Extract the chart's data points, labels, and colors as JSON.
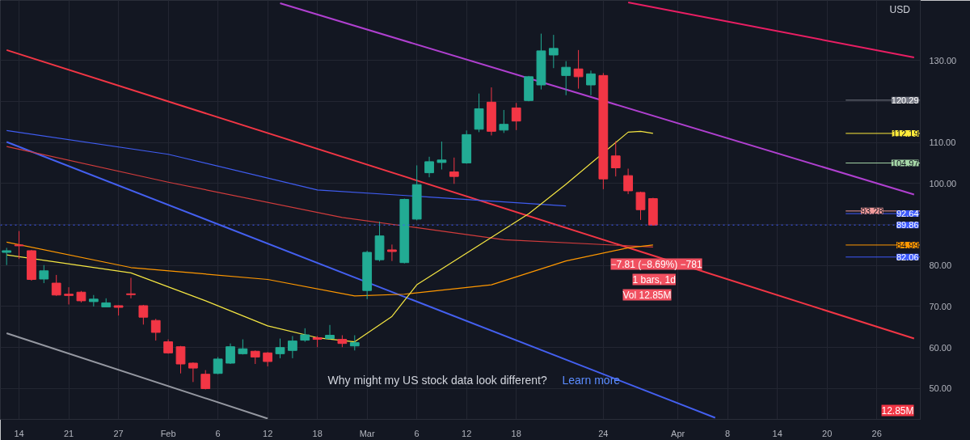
{
  "chart_data": {
    "type": "candlestick",
    "categories": [
      null,
      "14",
      null,
      null,
      null,
      "21",
      null,
      null,
      null,
      "27",
      null,
      null,
      null,
      "Feb",
      null,
      null,
      null,
      "6",
      null,
      null,
      null,
      "12",
      null,
      null,
      null,
      "18",
      null,
      null,
      null,
      "Mar",
      null,
      null,
      null,
      "6",
      null,
      null,
      null,
      "12",
      null,
      null,
      null,
      "18",
      null,
      null,
      null,
      null,
      null,
      null,
      "24",
      null,
      null,
      null,
      null,
      null,
      "Apr",
      null,
      null,
      null,
      "8",
      null,
      null,
      null,
      "14",
      null,
      null,
      null,
      "20",
      null,
      null,
      null,
      "26",
      null,
      null,
      null
    ],
    "ohlc": [
      [
        83.2,
        84.3,
        80.1,
        83.6
      ],
      [
        85.0,
        88.4,
        81.6,
        84.8
      ],
      [
        83.6,
        83.8,
        76.3,
        76.6
      ],
      [
        76.7,
        80.1,
        75.7,
        78.7
      ],
      [
        75.7,
        77.7,
        72.6,
        72.8
      ],
      [
        73.0,
        74.7,
        70.5,
        72.7
      ],
      [
        73.5,
        73.8,
        71.0,
        71.4
      ],
      [
        71.2,
        72.8,
        70.0,
        71.8
      ],
      [
        69.9,
        72.0,
        69.8,
        70.9
      ],
      [
        70.2,
        70.3,
        67.8,
        69.8
      ],
      [
        73.1,
        77.0,
        72.0,
        72.9
      ],
      [
        70.2,
        70.4,
        65.6,
        67.4
      ],
      [
        66.6,
        67.0,
        61.7,
        63.7
      ],
      [
        61.4,
        62.0,
        58.5,
        58.7
      ],
      [
        60.2,
        60.4,
        53.7,
        56.0
      ],
      [
        56.2,
        56.4,
        51.6,
        55.0
      ],
      [
        53.5,
        54.5,
        49.8,
        50.0
      ],
      [
        53.7,
        57.7,
        53.5,
        57.2
      ],
      [
        56.2,
        61.0,
        56.0,
        60.2
      ],
      [
        58.5,
        62.0,
        58.3,
        59.7
      ],
      [
        59.1,
        59.3,
        56.0,
        57.7
      ],
      [
        58.7,
        58.9,
        55.4,
        56.6
      ],
      [
        58.5,
        62.2,
        57.4,
        60.0
      ],
      [
        59.3,
        62.8,
        57.4,
        61.6
      ],
      [
        61.8,
        64.7,
        61.4,
        63.1
      ],
      [
        62.4,
        62.8,
        60.1,
        62.0
      ],
      [
        62.2,
        65.5,
        62.0,
        63.0
      ],
      [
        62.0,
        63.0,
        60.1,
        61.0
      ],
      [
        60.4,
        63.0,
        59.3,
        61.2
      ],
      [
        73.9,
        83.6,
        71.8,
        83.2
      ],
      [
        81.4,
        90.7,
        81.0,
        87.2
      ],
      [
        83.8,
        85.1,
        81.1,
        83.4
      ],
      [
        80.7,
        96.3,
        80.5,
        96.1
      ],
      [
        91.3,
        104.4,
        91.0,
        99.7
      ],
      [
        102.6,
        106.5,
        101.5,
        105.3
      ],
      [
        105.1,
        110.2,
        103.4,
        105.7
      ],
      [
        102.8,
        106.3,
        99.9,
        101.7
      ],
      [
        105.0,
        112.9,
        104.8,
        111.9
      ],
      [
        113.2,
        121.9,
        112.5,
        118.2
      ],
      [
        119.8,
        123.4,
        111.7,
        112.7
      ],
      [
        113.0,
        117.9,
        112.3,
        114.4
      ],
      [
        118.4,
        119.6,
        113.0,
        115.2
      ],
      [
        120.2,
        126.2,
        120.0,
        126.0
      ],
      [
        124.0,
        136.5,
        122.9,
        132.3
      ],
      [
        131.3,
        136.2,
        128.1,
        132.9
      ],
      [
        126.3,
        129.8,
        121.5,
        128.3
      ],
      [
        127.9,
        132.5,
        123.1,
        126.0
      ],
      [
        124.0,
        127.5,
        121.5,
        126.7
      ],
      [
        126.3,
        126.9,
        98.6,
        101.1
      ],
      [
        106.7,
        110.3,
        101.7,
        103.8
      ],
      [
        101.9,
        103.6,
        97.4,
        98.2
      ],
      [
        97.8,
        98.0,
        91.1,
        93.6
      ],
      [
        96.3,
        96.5,
        89.8,
        89.86
      ],
      null,
      null,
      null,
      null,
      null,
      null,
      null,
      null,
      null,
      null,
      null,
      null,
      null,
      null,
      null,
      null,
      null,
      null,
      null,
      null,
      null
    ],
    "colors": [
      "#22ab94",
      "#f23645",
      "#f23645",
      "#22ab94",
      "#f23645",
      "#f23645",
      "#f23645",
      "#22ab94",
      "#22ab94",
      "#f23645",
      "#f23645",
      "#f23645",
      "#f23645",
      "#f23645",
      "#f23645",
      "#f23645",
      "#f23645",
      "#22ab94",
      "#22ab94",
      "#22ab94",
      "#f23645",
      "#f23645",
      "#22ab94",
      "#22ab94",
      "#22ab94",
      "#f23645",
      "#22ab94",
      "#f23645",
      "#22ab94",
      "#22ab94",
      "#22ab94",
      "#f23645",
      "#22ab94",
      "#22ab94",
      "#22ab94",
      "#22ab94",
      "#f23645",
      "#22ab94",
      "#22ab94",
      "#f23645",
      "#22ab94",
      "#f23645",
      "#22ab94",
      "#22ab94",
      "#22ab94",
      "#22ab94",
      "#f23645",
      "#22ab94",
      "#f23645",
      "#f23645",
      "#f23645",
      "#f23645",
      "#f23645",
      null,
      null,
      null,
      null,
      null,
      null,
      null,
      null,
      null,
      null,
      null,
      null,
      null,
      null,
      null,
      null,
      null,
      null,
      null,
      null,
      null
    ],
    "series": [
      {
        "type": "line",
        "color": "#f23645",
        "values": [
          132.5,
          null,
          null,
          null,
          null,
          null,
          null,
          null,
          null,
          null,
          null,
          null,
          null,
          null,
          null,
          null,
          null,
          null,
          null,
          null,
          null,
          null,
          null,
          null,
          null,
          null,
          null,
          null,
          null,
          null,
          null,
          null,
          null,
          null,
          null,
          null,
          null,
          null,
          null,
          null,
          null,
          null,
          null,
          null,
          null,
          null,
          null,
          null,
          null,
          null,
          null,
          null,
          null,
          null,
          null,
          null,
          null,
          null,
          null,
          null,
          null,
          null,
          null,
          null,
          null,
          null,
          null,
          null,
          null,
          null,
          null,
          null,
          null,
          62.2
        ]
      },
      {
        "type": "line",
        "color": "#b040d0",
        "values": [
          null,
          null,
          null,
          null,
          null,
          null,
          null,
          null,
          null,
          null,
          null,
          null,
          null,
          null,
          null,
          null,
          null,
          null,
          null,
          null,
          null,
          null,
          143.9,
          null,
          null,
          null,
          null,
          null,
          null,
          null,
          null,
          null,
          null,
          null,
          null,
          null,
          null,
          null,
          null,
          null,
          null,
          null,
          null,
          null,
          null,
          null,
          null,
          null,
          null,
          null,
          null,
          null,
          null,
          null,
          null,
          null,
          null,
          null,
          null,
          null,
          null,
          null,
          null,
          null,
          null,
          null,
          null,
          null,
          null,
          null,
          null,
          null,
          null,
          97.3
        ]
      },
      {
        "type": "line",
        "color": "#e91e63",
        "values": [
          null,
          null,
          null,
          null,
          null,
          null,
          null,
          null,
          null,
          null,
          null,
          null,
          null,
          null,
          null,
          null,
          null,
          null,
          null,
          null,
          null,
          null,
          null,
          null,
          null,
          null,
          null,
          null,
          null,
          null,
          null,
          null,
          null,
          null,
          null,
          null,
          null,
          null,
          null,
          null,
          null,
          null,
          null,
          null,
          null,
          null,
          null,
          null,
          null,
          null,
          144.1,
          null,
          null,
          null,
          null,
          null,
          null,
          null,
          null,
          null,
          null,
          null,
          null,
          null,
          null,
          null,
          null,
          null,
          null,
          null,
          null,
          null,
          null,
          130.7
        ]
      },
      {
        "type": "line",
        "color": "#4460f0",
        "values": [
          110.1,
          null,
          null,
          null,
          null,
          null,
          null,
          null,
          null,
          null,
          null,
          null,
          null,
          null,
          null,
          null,
          null,
          null,
          null,
          null,
          null,
          null,
          null,
          null,
          null,
          null,
          null,
          null,
          null,
          null,
          null,
          null,
          null,
          null,
          null,
          null,
          null,
          null,
          null,
          null,
          null,
          null,
          null,
          null,
          null,
          null,
          null,
          null,
          null,
          null,
          null,
          null,
          null,
          null,
          null,
          null,
          null,
          42.9,
          null,
          null,
          null,
          null,
          null,
          null,
          null,
          null,
          null,
          null,
          null,
          null,
          null,
          null,
          null,
          null
        ]
      },
      {
        "type": "line",
        "color": "#9598a1",
        "values": [
          63.5,
          null,
          null,
          null,
          null,
          null,
          null,
          null,
          null,
          null,
          null,
          null,
          null,
          null,
          null,
          null,
          null,
          null,
          null,
          null,
          null,
          42.7,
          null,
          null,
          null,
          null,
          null,
          null,
          null,
          null,
          null,
          null,
          null,
          null,
          null,
          null,
          null,
          null,
          null,
          null,
          null,
          null,
          null,
          null,
          null,
          null,
          null,
          null,
          null,
          null,
          null,
          null,
          null,
          null,
          null,
          null,
          null,
          null,
          null,
          null,
          null,
          null,
          null,
          null,
          null,
          null,
          null,
          null,
          null,
          null,
          null,
          null,
          null,
          null
        ]
      },
      {
        "type": "line",
        "color": "#3f5cf0",
        "values": [
          112.9,
          null,
          null,
          null,
          null,
          null,
          null,
          null,
          null,
          null,
          null,
          null,
          null,
          107.1,
          null,
          null,
          null,
          null,
          null,
          null,
          null,
          null,
          null,
          null,
          null,
          98.4,
          null,
          null,
          null,
          null,
          null,
          null,
          null,
          null,
          null,
          96.5,
          null,
          null,
          null,
          null,
          null,
          null,
          null,
          null,
          null,
          94.5,
          null,
          null,
          null,
          null,
          null,
          null,
          null,
          null,
          null,
          null,
          null,
          null,
          null,
          null,
          null,
          null,
          null,
          null,
          null,
          null,
          null,
          null,
          null,
          null,
          null,
          null,
          null,
          null
        ]
      },
      {
        "type": "line",
        "color": "#d23c3c",
        "values": [
          109.0,
          null,
          null,
          null,
          null,
          null,
          null,
          null,
          null,
          null,
          null,
          null,
          null,
          100.3,
          null,
          null,
          null,
          null,
          null,
          null,
          null,
          null,
          null,
          null,
          null,
          null,
          null,
          91.7,
          null,
          null,
          null,
          null,
          null,
          null,
          null,
          null,
          null,
          null,
          null,
          null,
          86.3,
          null,
          null,
          null,
          null,
          null,
          null,
          null,
          null,
          null,
          null,
          null,
          84.5,
          null,
          null,
          null,
          null,
          null,
          null,
          null,
          null,
          null,
          null,
          null,
          null,
          null,
          null,
          null,
          null,
          null,
          null,
          null,
          null,
          null
        ]
      },
      {
        "type": "line",
        "color": "#ff9800",
        "values": [
          85.7,
          null,
          null,
          null,
          null,
          null,
          null,
          null,
          null,
          null,
          79.5,
          null,
          null,
          null,
          null,
          null,
          null,
          null,
          null,
          null,
          null,
          76.6,
          null,
          null,
          null,
          null,
          null,
          null,
          72.6,
          null,
          null,
          null,
          73.0,
          null,
          null,
          null,
          null,
          null,
          null,
          75.3,
          null,
          null,
          null,
          null,
          null,
          81.1,
          null,
          null,
          null,
          null,
          84.3,
          null,
          85.0,
          null,
          null,
          null,
          null,
          null,
          null,
          null,
          null,
          null,
          null,
          null,
          null,
          null,
          null,
          null,
          null,
          null,
          null,
          null,
          null,
          null
        ]
      },
      {
        "type": "line",
        "color": "#f5e642",
        "values": [
          82.6,
          null,
          null,
          null,
          null,
          null,
          null,
          null,
          null,
          null,
          78.2,
          null,
          null,
          null,
          null,
          null,
          71.4,
          null,
          null,
          null,
          null,
          65.3,
          null,
          null,
          null,
          62.4,
          null,
          null,
          61.4,
          null,
          null,
          67.6,
          null,
          75.3,
          null,
          null,
          81.1,
          null,
          null,
          null,
          null,
          null,
          92.6,
          null,
          null,
          99.8,
          null,
          null,
          null,
          null,
          112.5,
          112.7,
          112.2,
          null,
          null,
          null,
          null,
          null,
          null,
          null,
          null,
          null,
          null,
          null,
          null,
          null,
          null,
          null,
          null,
          null,
          null,
          null,
          null,
          null
        ]
      }
    ],
    "ylim": [
      42.5,
      144.6
    ],
    "yticks": [
      {
        "value": 50,
        "label": "50.00"
      },
      {
        "value": 60,
        "label": "60.00"
      },
      {
        "value": 70,
        "label": "70.00"
      },
      {
        "value": 80,
        "label": "80.00"
      },
      {
        "value": 90,
        "label": null
      },
      {
        "value": 100,
        "label": "100.00"
      },
      {
        "value": 110,
        "label": "110.00"
      },
      {
        "value": 120,
        "label": null
      },
      {
        "value": 130,
        "label": "130.00"
      }
    ],
    "grid": true,
    "ref_lines": [
      {
        "axis": "y",
        "value": 120.29,
        "label": "120.29",
        "color": "#787b86"
      },
      {
        "axis": "y",
        "value": 112.19,
        "label": "112.19",
        "color": "#ffeb3b"
      },
      {
        "axis": "y",
        "value": 104.97,
        "label": "104.97",
        "color": "#a5d6a7"
      },
      {
        "axis": "y",
        "value": 93.28,
        "label": "93.28",
        "color": "#ef9a9a"
      },
      {
        "axis": "y",
        "value": 92.64,
        "label": "92.64",
        "color": "#3d5afe"
      },
      {
        "axis": "y",
        "value": 89.86,
        "label": "89.86",
        "color": "#3d5afe",
        "line_style": "dotted"
      },
      {
        "axis": "y",
        "value": 84.99,
        "label": "84.99",
        "color": "#ff9800"
      },
      {
        "axis": "y",
        "value": 82.06,
        "label": "82.06",
        "color": "#3d5afe"
      }
    ],
    "annotations": [
      "USD",
      "12.85M",
      "−7.81 (−8.69%) −781",
      "1 bars, 1d",
      "Vol 12.85M",
      "Why might my US stock data look different?",
      "Learn more"
    ]
  }
}
